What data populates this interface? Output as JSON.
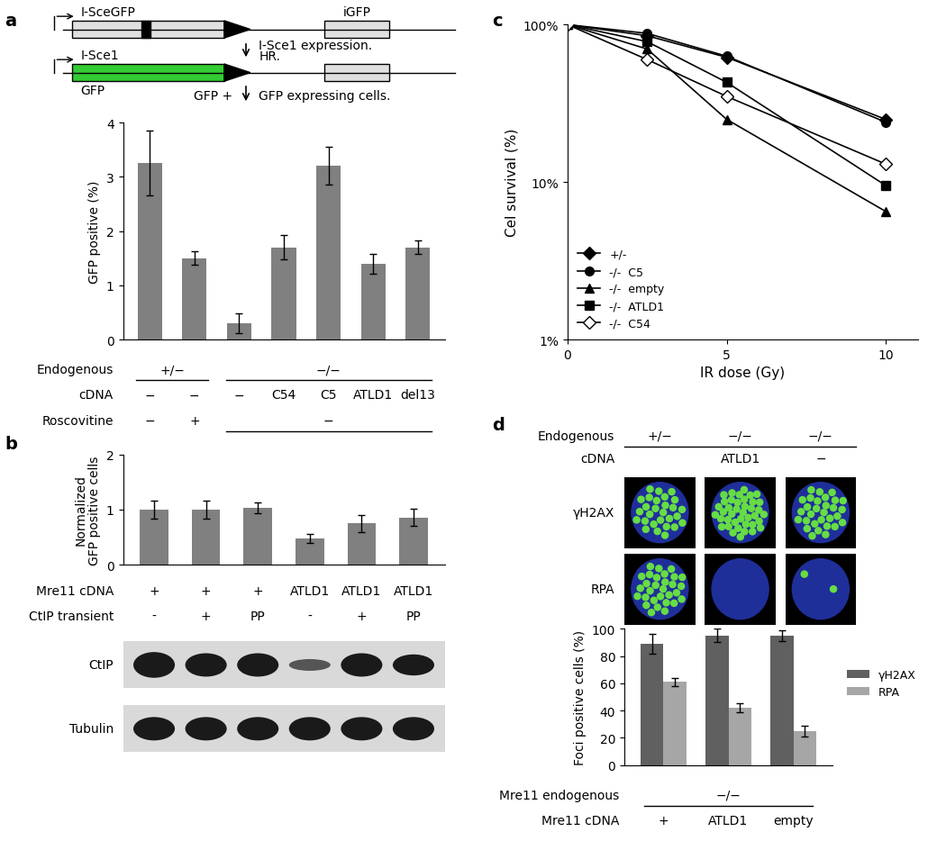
{
  "chart_data": [
    {
      "panel": "a",
      "type": "bar",
      "categories": [
        null,
        null,
        null,
        null,
        null,
        null,
        null
      ],
      "values": [
        3.25,
        1.5,
        0.3,
        1.7,
        3.2,
        1.4,
        1.7
      ],
      "errors": [
        0.6,
        0.12,
        0.18,
        0.22,
        0.35,
        0.18,
        0.13
      ],
      "color": "#808080",
      "y_label": "GFP positive (%)",
      "ylim": [
        0,
        4
      ],
      "yticks": [
        0,
        1,
        2,
        3,
        4
      ],
      "tick_labels": "y",
      "table": [
        {
          "label": "Endogenous",
          "cells": [
            {
              "text": "+/−",
              "span": 2
            },
            {
              "text": "−/−",
              "span": 5
            }
          ]
        },
        {
          "label": "cDNA",
          "cells": [
            "−",
            "−",
            "−",
            "C54",
            "C5",
            "ATLD1",
            "del13"
          ]
        },
        {
          "label": "Roscovitine",
          "cells": [
            "−",
            "+",
            {
              "text": "−",
              "span": 5
            }
          ]
        }
      ]
    },
    {
      "panel": "b",
      "type": "bar",
      "categories": [
        null,
        null,
        null,
        null,
        null,
        null
      ],
      "values": [
        1.0,
        1.0,
        1.03,
        0.48,
        0.75,
        0.86
      ],
      "errors": [
        0.17,
        0.17,
        0.1,
        0.08,
        0.15,
        0.16
      ],
      "color": "#808080",
      "y_label": "Normalized\nGFP positive cells",
      "ylim": [
        0,
        2
      ],
      "yticks": [
        0,
        1,
        2
      ],
      "tick_labels": "y",
      "table": [
        {
          "label": "Mre11 cDNA",
          "cells": [
            "+",
            "+",
            "+",
            "ATLD1",
            "ATLD1",
            "ATLD1"
          ]
        },
        {
          "label": "CtIP transient",
          "cells": [
            "-",
            "+",
            "PP",
            "-",
            "+",
            "PP"
          ]
        }
      ]
    },
    {
      "panel": "c",
      "type": "line",
      "x": [
        0,
        2.5,
        5,
        10
      ],
      "series": [
        {
          "name": "+/-",
          "color": "#000000",
          "marker": "diamond",
          "values": [
            100,
            85,
            62,
            25
          ]
        },
        {
          "name": "-/-  C5",
          "color": "#000000",
          "marker": "circle",
          "values": [
            100,
            88,
            63,
            24
          ]
        },
        {
          "name": "-/-  empty",
          "color": "#000000",
          "marker": "triangle",
          "values": [
            100,
            70,
            25,
            6.5
          ]
        },
        {
          "name": "-/-  ATLD1",
          "color": "#000000",
          "marker": "square",
          "values": [
            100,
            78,
            43,
            9.5
          ]
        },
        {
          "name": "-/-  C54",
          "color": "#000000",
          "marker": "open_diamond",
          "values": [
            100,
            60,
            35,
            13
          ]
        }
      ],
      "x_label": "IR dose (Gy)",
      "y_label": "Cel survival (%)",
      "xlim": [
        0,
        11
      ],
      "xticks": [
        0,
        5,
        10
      ],
      "ylim": [
        1,
        100
      ],
      "yticks": [
        {
          "value": 1,
          "label": "1%"
        },
        {
          "value": 10,
          "label": "10%"
        },
        {
          "value": 100,
          "label": "100%"
        }
      ],
      "log": "y",
      "legend": "lower left"
    },
    {
      "panel": "d",
      "type": "bar",
      "categories": [
        null,
        null,
        null
      ],
      "series": [
        {
          "name": "γH2AX",
          "color": "#606060",
          "values": [
            89,
            95,
            95
          ],
          "errors": [
            7,
            5,
            4
          ]
        },
        {
          "name": "RPA",
          "color": "#a6a6a6",
          "values": [
            61,
            42,
            25
          ],
          "errors": [
            3,
            3,
            4
          ]
        }
      ],
      "y_label": "Foci positive cells (%)",
      "ylim": [
        0,
        100
      ],
      "yticks": [
        0,
        20,
        40,
        60,
        80,
        100
      ],
      "tick_labels": "y",
      "legend": "right",
      "table": [
        {
          "label": "Mre11 endogenous",
          "cells": [
            {
              "text": "−/−",
              "span": 3
            }
          ]
        },
        {
          "label": "Mre11 cDNA",
          "cells": [
            "+",
            "ATLD1",
            "empty"
          ]
        }
      ]
    }
  ],
  "schematic": {
    "top_box": "I-SceGFP",
    "top_right_box": "iGFP",
    "bottom_box": "I-Sce1",
    "bottom_box_under": "GFP",
    "step_notes": [
      "I-Sce1 expression.",
      "HR."
    ],
    "result_left": "GFP +",
    "result_right": "GFP expressing cells."
  },
  "blot": {
    "rows": [
      "CtIP",
      "Tubulin"
    ]
  },
  "micrographs": {
    "header_rows": [
      {
        "label": "Endogenous",
        "cells": [
          "+/−",
          "−/−",
          "−/−"
        ]
      },
      {
        "label": "cDNA",
        "cells": [
          null,
          "ATLD1",
          "−"
        ]
      }
    ],
    "row_labels": [
      "γH2AX",
      "RPA"
    ]
  }
}
